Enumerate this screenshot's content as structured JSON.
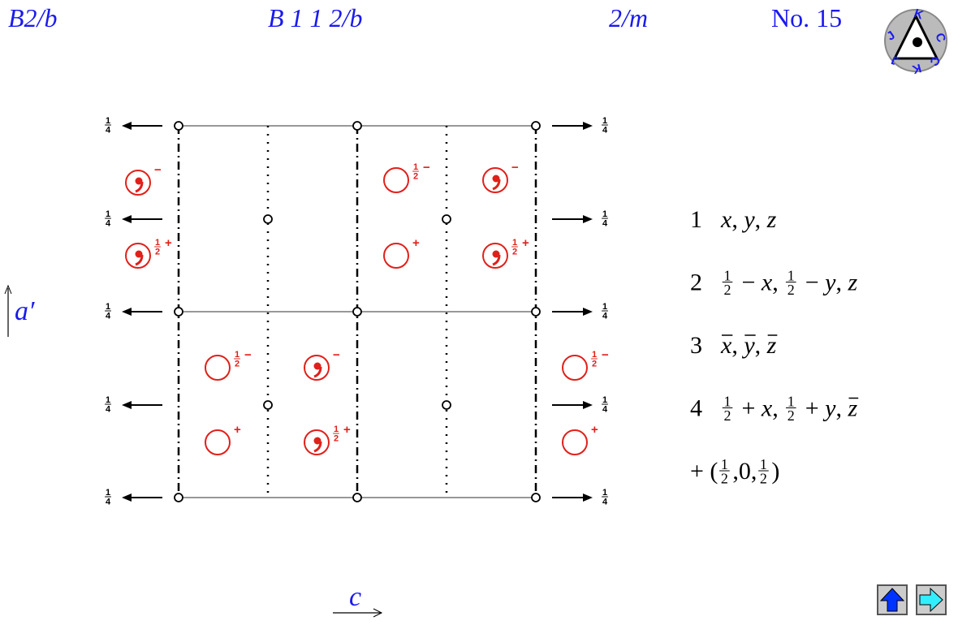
{
  "header": {
    "short_symbol": "B2/b",
    "full_symbol": "B 1 1 2/b",
    "point_group": "2/m",
    "number": "No. 15"
  },
  "logo": {
    "letters": [
      "J",
      "K",
      "C"
    ]
  },
  "axes": {
    "vertical": "a′",
    "horizontal": "c"
  },
  "quarter": {
    "num": "1",
    "den": "4"
  },
  "positions": [
    {
      "comma": true,
      "sign": "−"
    },
    {
      "comma": true,
      "frac": {
        "num": "1",
        "den": "2"
      },
      "sign": "+"
    },
    {
      "comma": false,
      "frac": {
        "num": "1",
        "den": "2"
      },
      "sign": "−"
    },
    {
      "comma": false,
      "sign": "+"
    },
    {
      "comma": true,
      "sign": "−"
    },
    {
      "comma": true,
      "frac": {
        "num": "1",
        "den": "2"
      },
      "sign": "+"
    },
    {
      "comma": false,
      "frac": {
        "num": "1",
        "den": "2"
      },
      "sign": "−"
    },
    {
      "comma": true,
      "sign": "−"
    },
    {
      "comma": false,
      "sign": "+"
    },
    {
      "comma": true,
      "frac": {
        "num": "1",
        "den": "2"
      },
      "sign": "+"
    },
    {
      "comma": false,
      "frac": {
        "num": "1",
        "den": "2"
      },
      "sign": "−"
    },
    {
      "comma": false,
      "sign": "+"
    }
  ],
  "operations": [
    {
      "number": "1",
      "color": "#1a1aee",
      "tokens": [
        {
          "var": "x"
        },
        ", ",
        {
          "var": "y"
        },
        ", ",
        {
          "var": "z"
        }
      ]
    },
    {
      "number": "2",
      "tokens": [
        {
          "num": "1",
          "den": "2"
        },
        " − ",
        {
          "var": "x"
        },
        ", ",
        {
          "num": "1",
          "den": "2"
        },
        " − ",
        {
          "var": "y"
        },
        ", ",
        {
          "var": "z"
        }
      ]
    },
    {
      "number": "3",
      "tokens": [
        {
          "var": "x",
          "bar": true
        },
        ", ",
        {
          "var": "y",
          "bar": true
        },
        ", ",
        {
          "var": "z",
          "bar": true
        }
      ]
    },
    {
      "number": "4",
      "tokens": [
        {
          "num": "1",
          "den": "2"
        },
        " + ",
        {
          "var": "x"
        },
        ", ",
        {
          "num": "1",
          "den": "2"
        },
        " + ",
        {
          "var": "y"
        },
        ", ",
        {
          "var": "z",
          "bar": true
        }
      ]
    }
  ],
  "centering": {
    "tokens": [
      "+ (",
      {
        "num": "1",
        "den": "2"
      },
      ",0,",
      {
        "num": "1",
        "den": "2"
      },
      ")"
    ]
  }
}
